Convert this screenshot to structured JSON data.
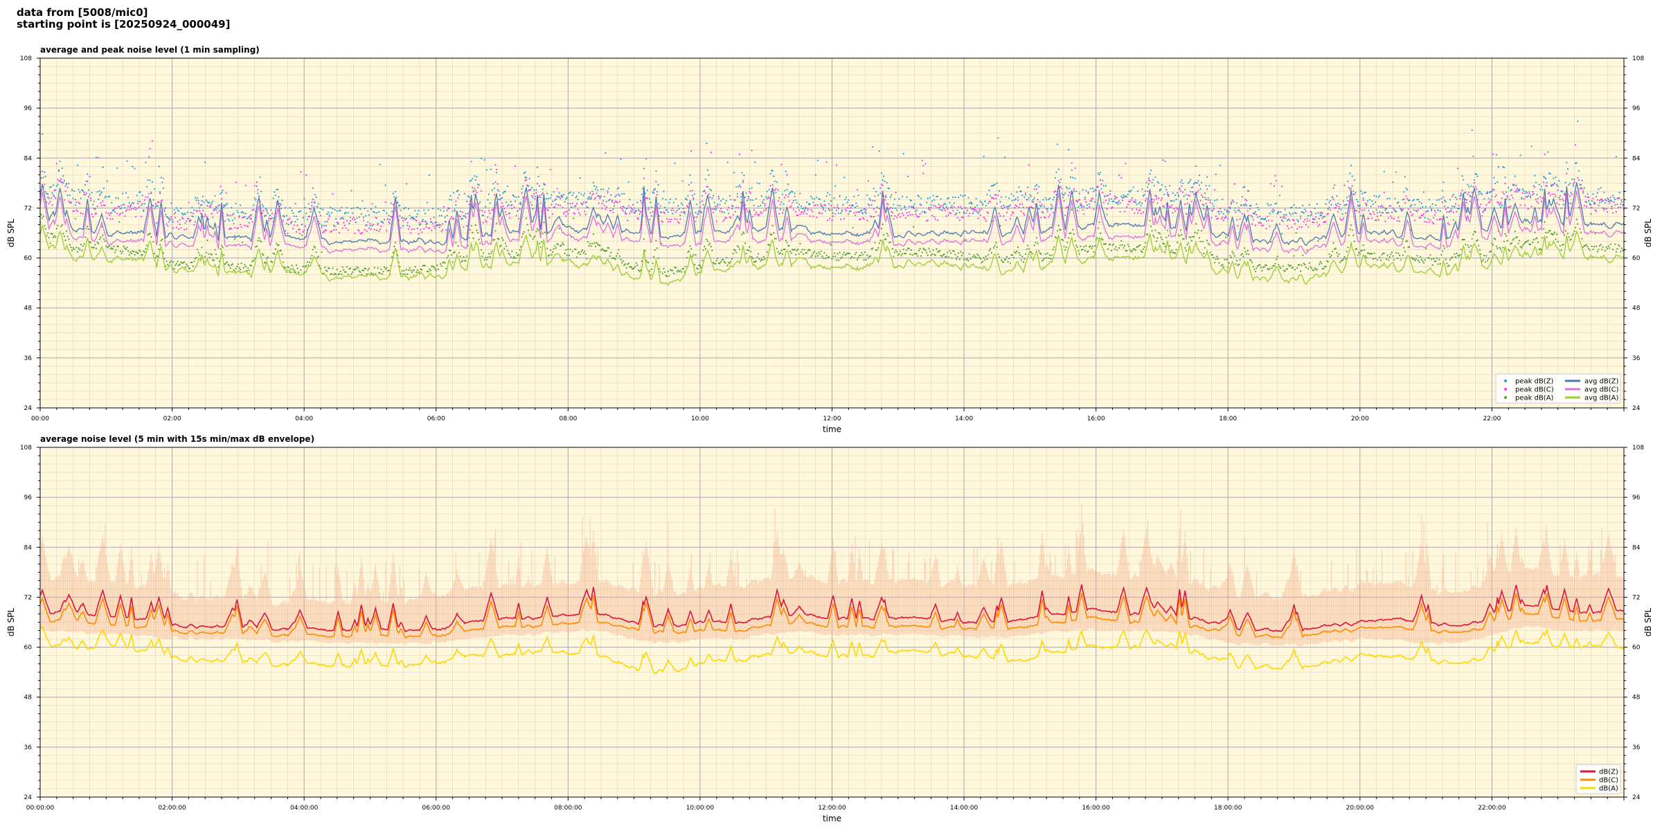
{
  "header": {
    "line1": "data from [5008/mic0]",
    "line2": "starting point is [20250924_000049]"
  },
  "colors": {
    "plot_bg": "#fff8dc",
    "peak_z": "#1f9fd8",
    "peak_c": "#ff33ee",
    "peak_a": "#4aa02c",
    "avg_z": "#4a78b4",
    "avg_c": "#e070e0",
    "avg_a": "#9acd32",
    "dbz": "#dc143c",
    "dbc": "#ff8c00",
    "dba": "#ffd700",
    "envelope": "#f4a582"
  },
  "chart_data": [
    {
      "type": "line",
      "title": "average and peak noise level (1 min sampling)",
      "xlabel": "time",
      "ylabel": "dB SPL",
      "ylim": [
        24,
        108
      ],
      "xlim_hours": [
        0,
        24
      ],
      "yticks": [
        24,
        36,
        48,
        60,
        72,
        84,
        96,
        108
      ],
      "xticks": [
        {
          "h": 0,
          "label": "00:00"
        },
        {
          "h": 2,
          "label": "02:00"
        },
        {
          "h": 4,
          "label": "04:00"
        },
        {
          "h": 6,
          "label": "06:00"
        },
        {
          "h": 8,
          "label": "08:00"
        },
        {
          "h": 10,
          "label": "10:00"
        },
        {
          "h": 12,
          "label": "12:00"
        },
        {
          "h": 14,
          "label": "14:00"
        },
        {
          "h": 16,
          "label": "16:00"
        },
        {
          "h": 18,
          "label": "18:00"
        },
        {
          "h": 20,
          "label": "20:00"
        },
        {
          "h": 22,
          "label": "22:00"
        }
      ],
      "grid": true,
      "legend_position": "lower-right",
      "legend": {
        "peak_z": "peak dB(Z)",
        "peak_c": "peak dB(C)",
        "peak_a": "peak dB(A)",
        "avg_z": "avg dB(Z)",
        "avg_c": "avg dB(C)",
        "avg_a": "avg dB(A)"
      },
      "x_hours": [
        0,
        0.5,
        1,
        1.5,
        2,
        2.5,
        3,
        3.5,
        4,
        4.5,
        5,
        5.5,
        6,
        6.5,
        7,
        7.5,
        8,
        8.5,
        9,
        9.5,
        10,
        10.5,
        11,
        11.5,
        12,
        12.5,
        13,
        13.5,
        14,
        14.5,
        15,
        15.5,
        16,
        16.5,
        17,
        17.5,
        18,
        18.5,
        19,
        19.5,
        20,
        20.5,
        21,
        21.5,
        22,
        22.5,
        23,
        23.5,
        24
      ],
      "series": [
        {
          "key": "avg_z",
          "name": "avg dB(Z)",
          "values": [
            67,
            67,
            66,
            66,
            65,
            65,
            65,
            64.5,
            64.5,
            64,
            64,
            64,
            64,
            65,
            66,
            66,
            67,
            67,
            66,
            65,
            66,
            66,
            67,
            67,
            66,
            66,
            66,
            66,
            66,
            66,
            66,
            67,
            68,
            68,
            67,
            67,
            65,
            64,
            64,
            65,
            66,
            66,
            65,
            65,
            67,
            69,
            68,
            68,
            68
          ]
        },
        {
          "key": "avg_c",
          "name": "avg dB(C)",
          "values": [
            65,
            65,
            64,
            64,
            63,
            63,
            63,
            62.5,
            62.5,
            62,
            62,
            62,
            62,
            63,
            64,
            64,
            65,
            65,
            64,
            63,
            63,
            64,
            64,
            65,
            64,
            64,
            64,
            64,
            64,
            64,
            64,
            65,
            65,
            65,
            65,
            65,
            63,
            62,
            62,
            63,
            64,
            64,
            63,
            63,
            65,
            67,
            66,
            66,
            66
          ]
        },
        {
          "key": "avg_a",
          "name": "avg dB(A)",
          "values": [
            61,
            60,
            60,
            59.5,
            57,
            57,
            56.5,
            56,
            56,
            55.5,
            55.5,
            55.5,
            56,
            58,
            58,
            59,
            59,
            58,
            55,
            54,
            56,
            57,
            58,
            59,
            58,
            58,
            59,
            59,
            58,
            57,
            57,
            59,
            60,
            60,
            60,
            59,
            56,
            55,
            55,
            56,
            58,
            58,
            57,
            56,
            58,
            61,
            60,
            60,
            60
          ]
        },
        {
          "key": "peak_z",
          "name": "peak dB(Z)",
          "values": [
            73,
            74,
            72,
            73,
            70,
            70,
            70,
            69,
            69,
            69,
            69,
            69,
            69,
            71,
            72,
            72,
            73,
            73,
            72,
            71,
            72,
            72,
            73,
            73,
            72,
            72,
            72,
            72,
            72,
            72,
            72,
            73,
            74,
            74,
            73,
            73,
            71,
            70,
            70,
            71,
            72,
            72,
            71,
            71,
            73,
            75,
            74,
            74,
            74
          ]
        },
        {
          "key": "peak_c",
          "name": "peak dB(C)",
          "values": [
            71,
            72,
            70,
            71,
            68,
            68,
            68,
            67,
            67,
            67,
            67,
            67,
            67,
            69,
            70,
            70,
            71,
            71,
            70,
            69,
            70,
            70,
            71,
            71,
            70,
            70,
            70,
            70,
            70,
            70,
            70,
            71,
            72,
            72,
            71,
            71,
            69,
            68,
            68,
            69,
            70,
            70,
            69,
            69,
            71,
            73,
            72,
            72,
            72
          ]
        },
        {
          "key": "peak_a",
          "name": "peak dB(A)",
          "values": [
            63,
            62,
            62,
            61,
            58,
            58,
            57.5,
            57,
            57,
            56.5,
            56.5,
            56.5,
            57,
            60,
            60,
            61,
            61,
            60,
            57,
            56,
            58,
            59,
            60,
            61,
            60,
            60,
            61,
            61,
            60,
            59,
            59,
            61,
            62,
            62,
            62,
            61,
            58,
            57,
            57,
            58,
            60,
            60,
            59,
            58,
            60,
            63,
            62,
            62,
            62
          ]
        }
      ]
    },
    {
      "type": "line",
      "title": "average noise level (5 min with 15s min/max dB envelope)",
      "xlabel": "time",
      "ylabel": "dB SPL",
      "ylim": [
        24,
        108
      ],
      "xlim_hours": [
        0,
        24
      ],
      "yticks": [
        24,
        36,
        48,
        60,
        72,
        84,
        96,
        108
      ],
      "xticks": [
        {
          "h": 0,
          "label": "00:00:00"
        },
        {
          "h": 2,
          "label": "02:00:00"
        },
        {
          "h": 4,
          "label": "04:00:00"
        },
        {
          "h": 6,
          "label": "06:00:00"
        },
        {
          "h": 8,
          "label": "08:00:00"
        },
        {
          "h": 10,
          "label": "10:00:00"
        },
        {
          "h": 12,
          "label": "12:00:00"
        },
        {
          "h": 14,
          "label": "14:00:00"
        },
        {
          "h": 16,
          "label": "16:00:00"
        },
        {
          "h": 18,
          "label": "18:00:00"
        },
        {
          "h": 20,
          "label": "20:00:00"
        },
        {
          "h": 22,
          "label": "22:00:00"
        }
      ],
      "grid": true,
      "legend_position": "lower-right",
      "legend": {
        "dbz": "dB(Z)",
        "dbc": "dB(C)",
        "dba": "dB(A)"
      },
      "x_hours": [
        0,
        0.5,
        1,
        1.5,
        2,
        2.5,
        3,
        3.5,
        4,
        4.5,
        5,
        5.5,
        6,
        6.5,
        7,
        7.5,
        8,
        8.5,
        9,
        9.5,
        10,
        10.5,
        11,
        11.5,
        12,
        12.5,
        13,
        13.5,
        14,
        14.5,
        15,
        15.5,
        16,
        16.5,
        17,
        17.5,
        18,
        18.5,
        19,
        19.5,
        20,
        20.5,
        21,
        21.5,
        22,
        22.5,
        23,
        23.5,
        24
      ],
      "series": [
        {
          "key": "dbz",
          "name": "dB(Z)",
          "values": [
            68,
            69,
            67,
            67,
            65,
            65,
            65,
            64.5,
            64.5,
            64,
            64.5,
            64,
            64,
            66,
            67,
            67,
            68,
            68,
            66,
            65,
            66,
            66,
            67,
            68,
            67,
            67,
            67,
            67,
            66,
            66,
            67,
            68,
            69,
            68,
            68,
            67,
            65,
            64,
            64,
            65,
            66,
            67,
            66,
            65,
            67,
            70,
            69,
            68,
            69
          ]
        },
        {
          "key": "dbc",
          "name": "dB(C)",
          "values": [
            66,
            67,
            65,
            65,
            63.5,
            63.5,
            63.5,
            63,
            63,
            62.5,
            63,
            62.5,
            62.5,
            64,
            65,
            65,
            66,
            66,
            64.5,
            63.5,
            64,
            64,
            65,
            66,
            65,
            65,
            65,
            65,
            64.5,
            64.5,
            65,
            66,
            67,
            66,
            66,
            65,
            63.5,
            62.5,
            62.5,
            63.5,
            64.5,
            65,
            64,
            63.5,
            65,
            68,
            67,
            66,
            67
          ]
        },
        {
          "key": "dba",
          "name": "dB(A)",
          "values": [
            61,
            60,
            60,
            59.5,
            57,
            57,
            56.5,
            56,
            56,
            55.5,
            55.5,
            55.5,
            56,
            58,
            58,
            59,
            59,
            58,
            55,
            54,
            56,
            57,
            58,
            59,
            58,
            58,
            59,
            59,
            58,
            57,
            57,
            59,
            60,
            60,
            60,
            59,
            56,
            55,
            55,
            56,
            58,
            58,
            57,
            56,
            58,
            61,
            60,
            60,
            60
          ]
        },
        {
          "key": "env_max",
          "name": "",
          "values": [
            76,
            78,
            75,
            75,
            72,
            72,
            72,
            71,
            71,
            71,
            71,
            71,
            72,
            74,
            75,
            75,
            76,
            76,
            74,
            73,
            74,
            75,
            76,
            77,
            76,
            76,
            76,
            76,
            75,
            75,
            76,
            77,
            78,
            77,
            77,
            76,
            73,
            72,
            72,
            73,
            75,
            76,
            74,
            73,
            76,
            79,
            77,
            77,
            77
          ]
        },
        {
          "key": "env_min",
          "name": "",
          "values": [
            64,
            64,
            63,
            63,
            62,
            62,
            62,
            61.5,
            61.5,
            61,
            61,
            61,
            61,
            62,
            63,
            63,
            64,
            64,
            62,
            61,
            62,
            62,
            63,
            64,
            63,
            63,
            63,
            63,
            62.5,
            62.5,
            63,
            64,
            64,
            64,
            64,
            63,
            61,
            60.5,
            60.5,
            61,
            62,
            62,
            61,
            61,
            63,
            65,
            64,
            64,
            64
          ]
        }
      ]
    }
  ]
}
